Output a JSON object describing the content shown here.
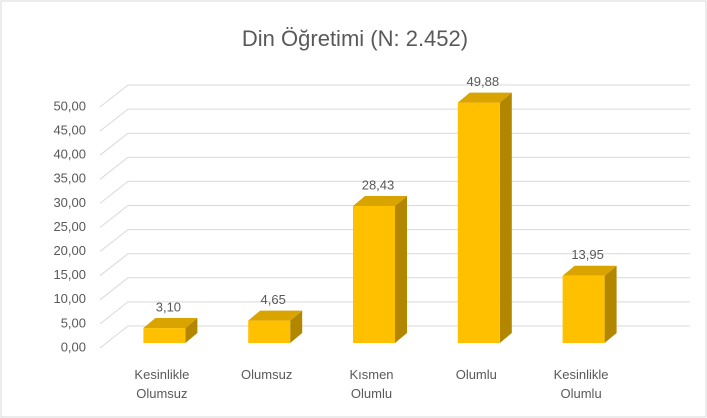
{
  "chart_data": {
    "type": "bar",
    "title": "Din Öğretimi (N: 2.452)",
    "categories": [
      "Kesinlikle Olumsuz",
      "Olumsuz",
      "Kısmen Olumlu",
      "Olumlu",
      "Kesinlikle Olumlu"
    ],
    "values": [
      3.1,
      4.65,
      28.43,
      49.88,
      13.95
    ],
    "value_labels": [
      "3,10",
      "4,65",
      "28,43",
      "49,88",
      "13,95"
    ],
    "color": "#ffc000",
    "ylim": [
      0,
      50
    ],
    "yticks": [
      {
        "value": 0,
        "label": "0,00"
      },
      {
        "value": 5,
        "label": "5,00"
      },
      {
        "value": 10,
        "label": "10,00"
      },
      {
        "value": 15,
        "label": "15,00"
      },
      {
        "value": 20,
        "label": "20,00"
      },
      {
        "value": 25,
        "label": "25,00"
      },
      {
        "value": 30,
        "label": "30,00"
      },
      {
        "value": 35,
        "label": "35,00"
      },
      {
        "value": 40,
        "label": "40,00"
      },
      {
        "value": 45,
        "label": "45,00"
      },
      {
        "value": 50,
        "label": "50,00"
      }
    ],
    "grid": true
  }
}
